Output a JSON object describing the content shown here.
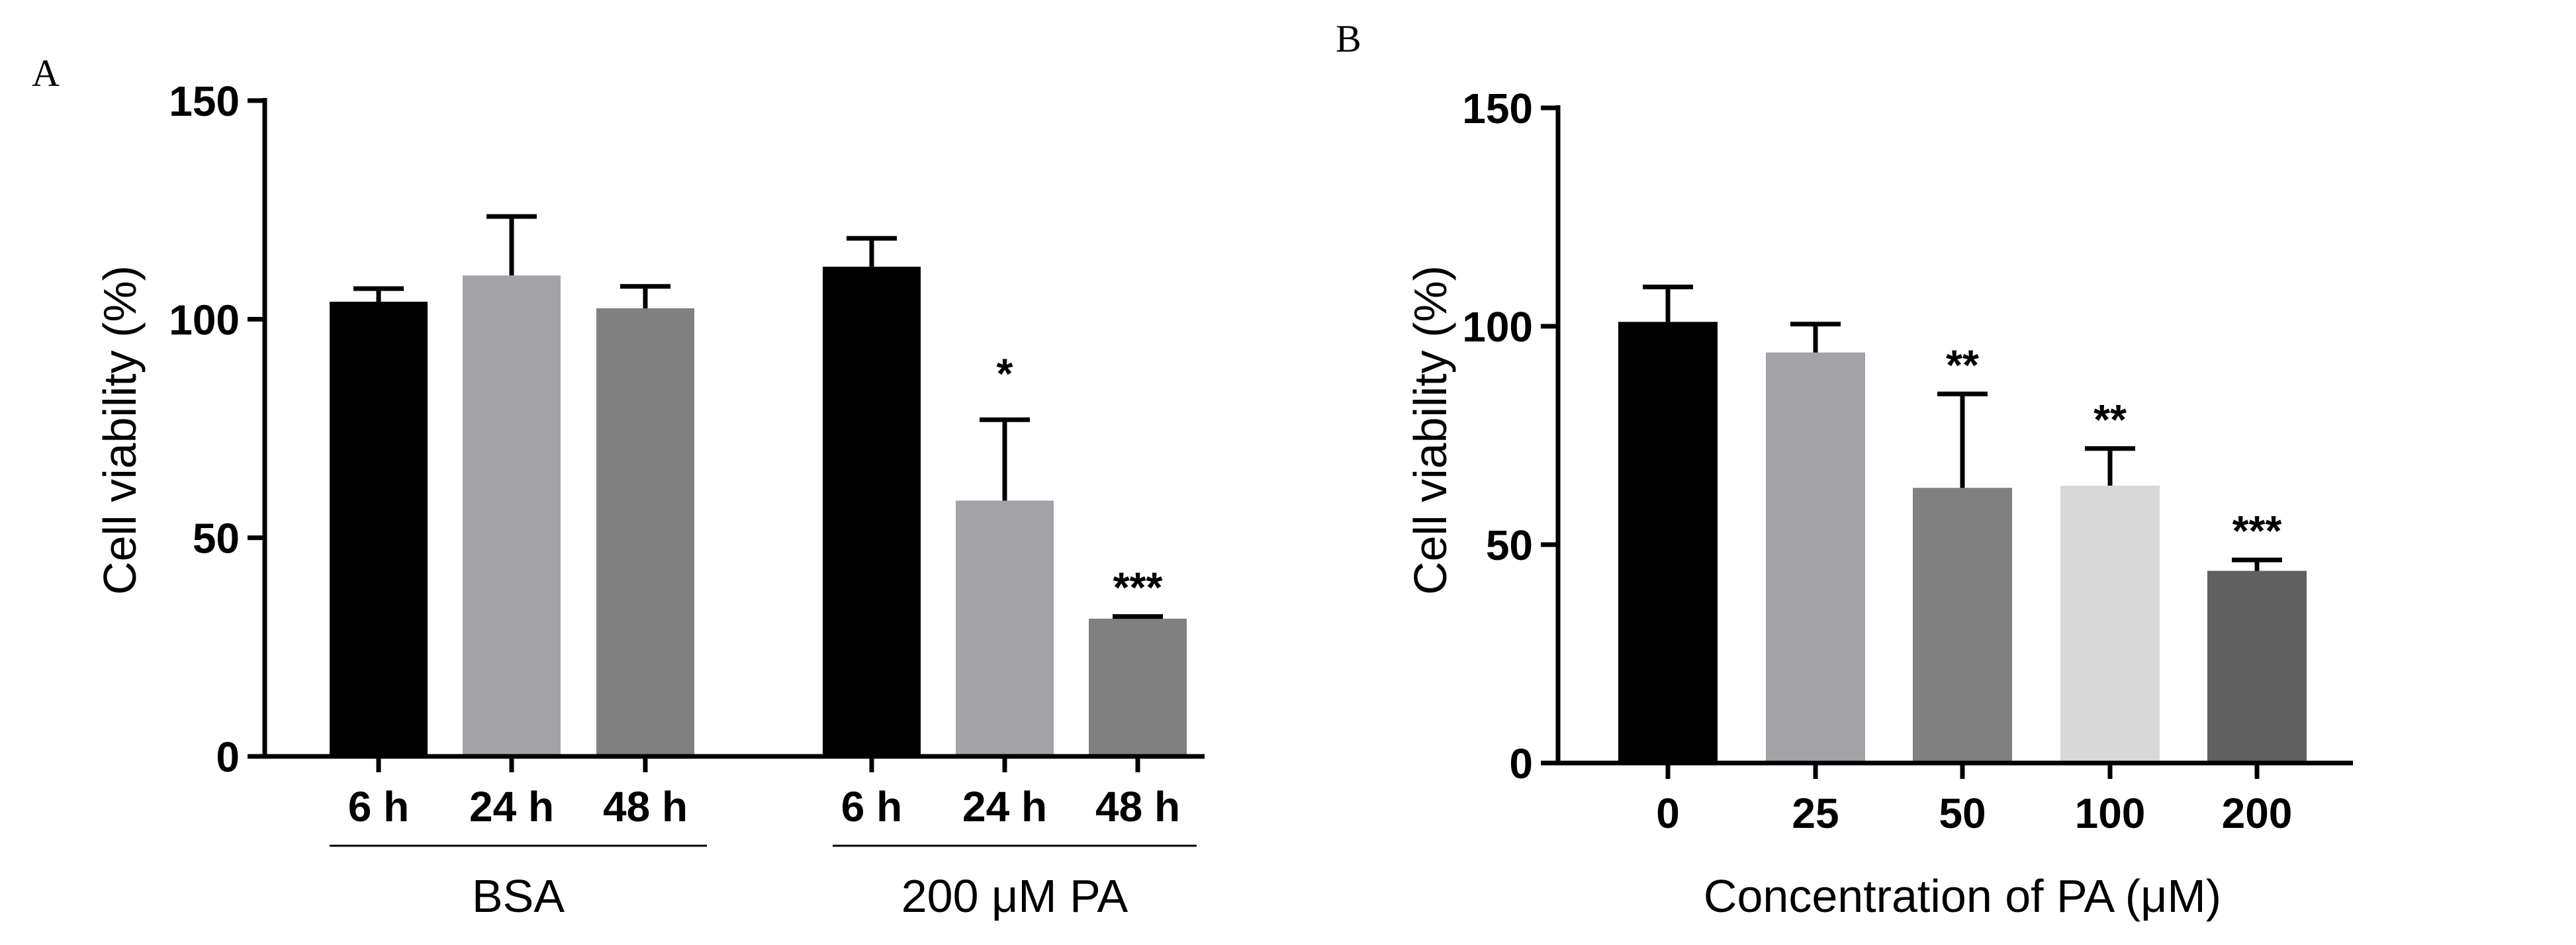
{
  "chart_data": [
    {
      "panel_label": "A",
      "type": "bar",
      "ylabel": "Cell viability (%)",
      "ylim": [
        0,
        150
      ],
      "yticks": [
        "0",
        "50",
        "100",
        "150"
      ],
      "categories": [
        "6 h",
        "24 h",
        "48 h",
        "6 h",
        "24 h",
        "48 h"
      ],
      "groups": [
        {
          "label": "BSA",
          "category_indices": [
            0,
            1,
            2
          ]
        },
        {
          "label": "200 μM PA",
          "category_indices": [
            3,
            4,
            5
          ]
        }
      ],
      "values": [
        104,
        110,
        102.5,
        112,
        58.5,
        31.5
      ],
      "errors": [
        3,
        13.5,
        5,
        6.5,
        18.5,
        0.5
      ],
      "significance": [
        "",
        "",
        "",
        "",
        "*",
        "***"
      ],
      "colors": [
        "#000000",
        "#a3a2a7",
        "#808080",
        "#000000",
        "#a3a2a7",
        "#808080"
      ]
    },
    {
      "panel_label": "B",
      "type": "bar",
      "xlabel": "Concentration of PA (μM)",
      "ylabel": "Cell viability (%)",
      "ylim": [
        0,
        150
      ],
      "yticks": [
        "0",
        "50",
        "100",
        "150"
      ],
      "categories": [
        "0",
        "25",
        "50",
        "100",
        "200"
      ],
      "values": [
        101,
        94,
        63,
        63.5,
        44
      ],
      "errors": [
        8,
        6.5,
        21.5,
        8.5,
        2.5
      ],
      "significance": [
        "",
        "",
        "**",
        "**",
        "***"
      ],
      "colors": [
        "#000000",
        "#a3a2a7",
        "#808080",
        "#d8d8d8",
        "#606060"
      ]
    }
  ]
}
